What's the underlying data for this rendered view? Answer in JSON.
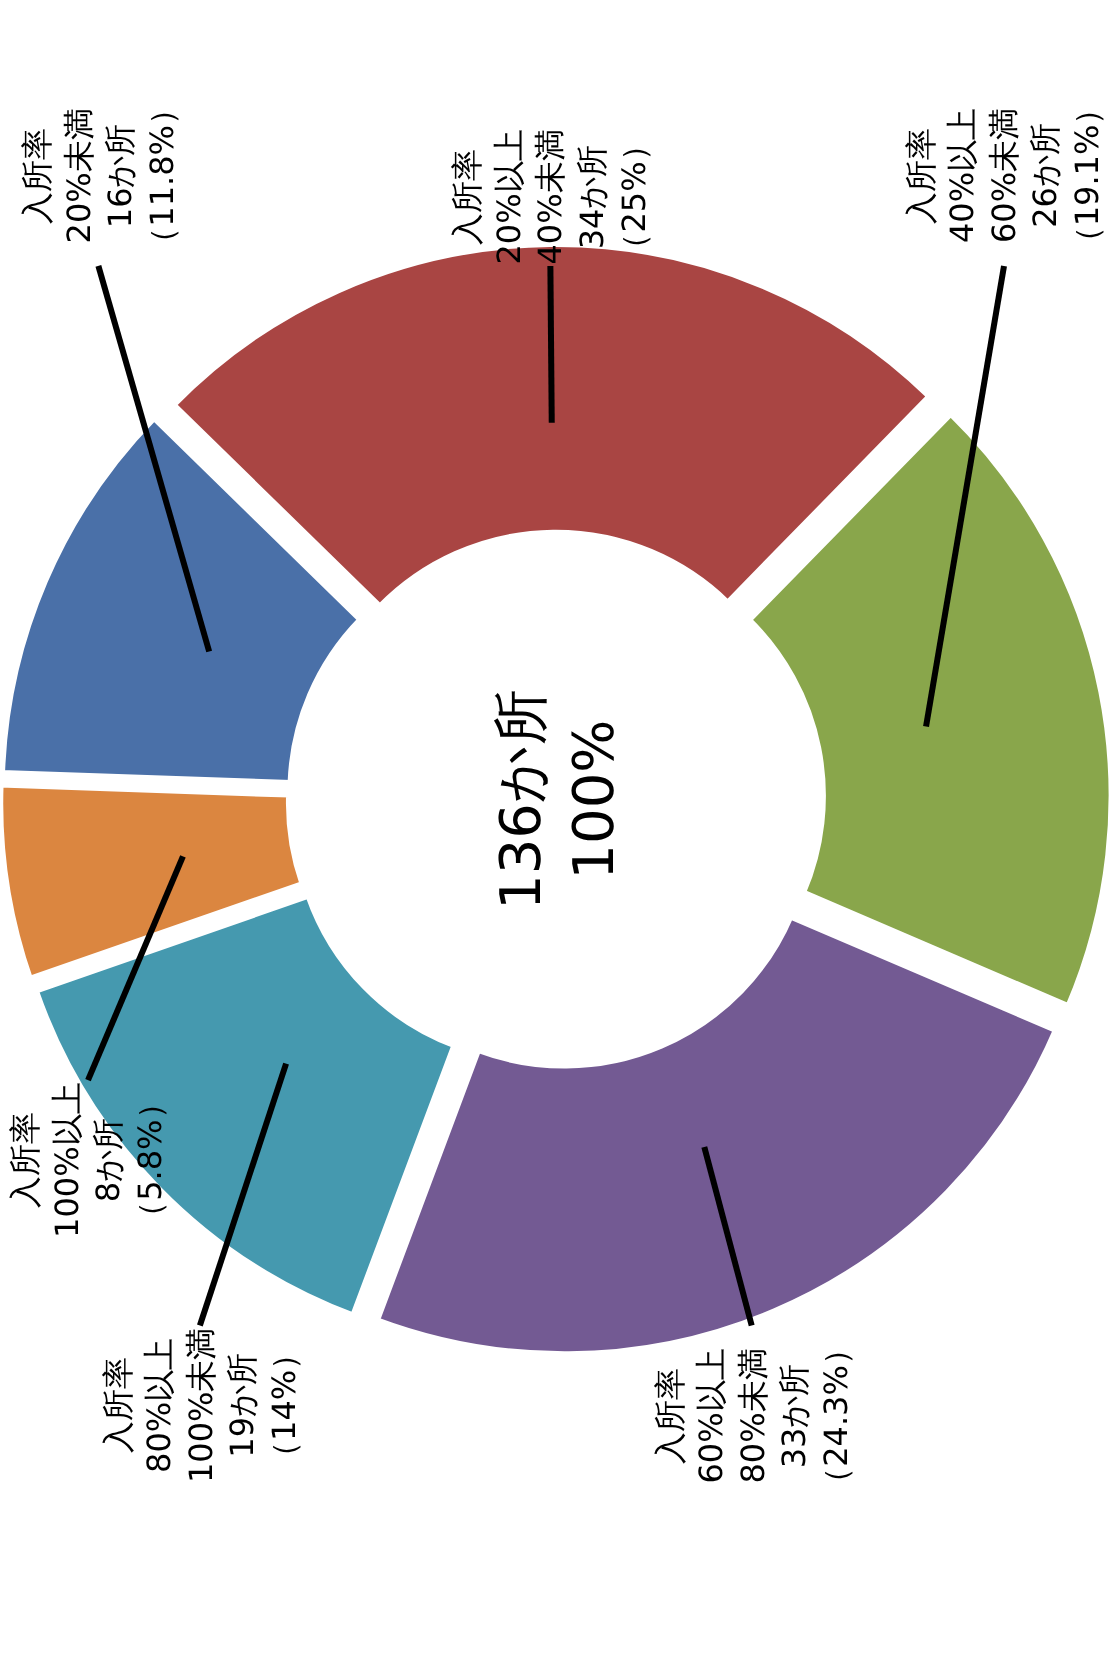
{
  "chart_data": {
    "type": "donut",
    "categories": [
      "入所率\n20%未満",
      "入所率\n20%以上\n40%未満",
      "入所率\n40%以上\n60%未満",
      "入所率\n60%以上\n80%未満",
      "入所率\n80%以上\n100%未満",
      "入所率\n100%以上"
    ],
    "values": [
      16,
      34,
      26,
      33,
      19,
      8
    ],
    "value_labels": [
      "16か所（11.8%）",
      "34か所（25%）",
      "26か所（19.1%）",
      "33か所（24.3%）",
      "19か所（14%）",
      "8か所（5.8%）"
    ],
    "colors": [
      "#4a70a8",
      "#a94543",
      "#89a64b",
      "#735a93",
      "#4599af",
      "#db8640"
    ],
    "annotations": [
      "136か所\n100%"
    ],
    "legend": false
  }
}
